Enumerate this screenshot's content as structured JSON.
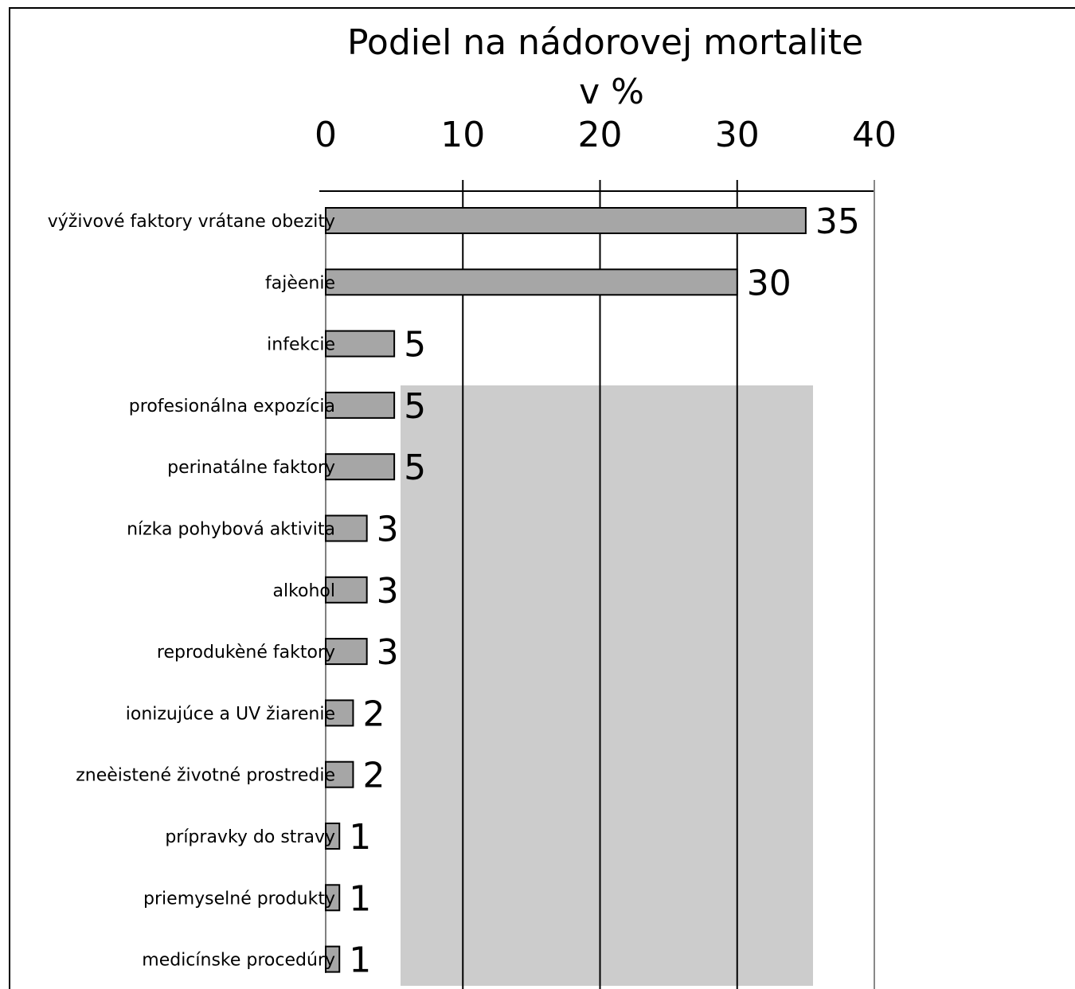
{
  "chart_data": {
    "type": "hbar",
    "title_lines": [
      "Podiel na nádorovej mortalite",
      "v %"
    ],
    "categories": [
      "výživové faktory vrátane obezity",
      "fajèenie",
      "infekcie",
      "profesionálna expozícia",
      "perinatálne faktory",
      "nízka pohybová aktivita",
      "alkohol",
      "reprodukèné faktory",
      "ionizujúce a UV žiarenie",
      "zneèistené životné prostredie",
      "prípravky do stravy",
      "priemyselné produkty",
      "medicínske procedúry"
    ],
    "values": [
      35,
      30,
      5,
      5,
      5,
      3,
      3,
      3,
      2,
      2,
      1,
      1,
      1
    ],
    "color": "#a6a6a6",
    "xlim": [
      0,
      40
    ],
    "xticks": [
      0,
      10,
      20,
      30,
      40
    ],
    "grid": true
  }
}
